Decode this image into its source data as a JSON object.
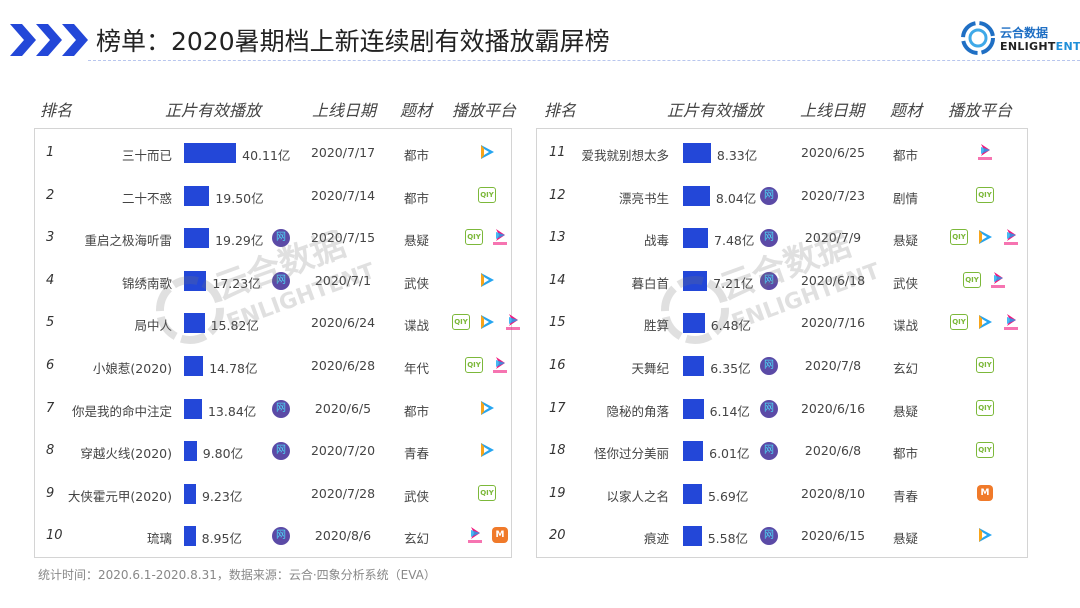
{
  "header": {
    "title": "榜单：2020暑期档上新连续剧有效播放霸屏榜",
    "logo_cn": "云合数据",
    "logo_en_a": "ENLIGHT",
    "logo_en_b": "ENT"
  },
  "colors": {
    "accent": "#2347d8",
    "network_badge": "#5b4aa6",
    "iqiyi": "#7cb83a",
    "mango": "#f07a2a"
  },
  "columns": {
    "rank": "排名",
    "plays": "正片有效播放",
    "date": "上线日期",
    "genre": "题材",
    "platform": "播放平台"
  },
  "network_badge_label": "网",
  "platform_icons": {
    "tencent": "tencent-video-icon",
    "iqiyi": "iqiyi-icon",
    "youku": "youku-icon",
    "mango": "mango-tv-icon"
  },
  "iqiyi_label": "QIY",
  "mango_label": "M",
  "rows": [
    {
      "rank": "1",
      "name": "三十而已",
      "value": 40.11,
      "value_label": "40.11亿",
      "net": false,
      "date": "2020/7/17",
      "genre": "都市",
      "platforms": [
        "tencent"
      ]
    },
    {
      "rank": "2",
      "name": "二十不惑",
      "value": 19.5,
      "value_label": "19.50亿",
      "net": false,
      "date": "2020/7/14",
      "genre": "都市",
      "platforms": [
        "iqiyi"
      ]
    },
    {
      "rank": "3",
      "name": "重启之极海听雷",
      "value": 19.29,
      "value_label": "19.29亿",
      "net": true,
      "date": "2020/7/15",
      "genre": "悬疑",
      "platforms": [
        "iqiyi",
        "youku"
      ]
    },
    {
      "rank": "4",
      "name": "锦绣南歌",
      "value": 17.23,
      "value_label": "17.23亿",
      "net": true,
      "date": "2020/7/1",
      "genre": "武侠",
      "platforms": [
        "tencent"
      ]
    },
    {
      "rank": "5",
      "name": "局中人",
      "value": 15.82,
      "value_label": "15.82亿",
      "net": false,
      "date": "2020/6/24",
      "genre": "谍战",
      "platforms": [
        "iqiyi",
        "tencent",
        "youku"
      ]
    },
    {
      "rank": "6",
      "name": "小娘惹(2020)",
      "value": 14.78,
      "value_label": "14.78亿",
      "net": false,
      "date": "2020/6/28",
      "genre": "年代",
      "platforms": [
        "iqiyi",
        "youku"
      ]
    },
    {
      "rank": "7",
      "name": "你是我的命中注定",
      "value": 13.84,
      "value_label": "13.84亿",
      "net": true,
      "date": "2020/6/5",
      "genre": "都市",
      "platforms": [
        "tencent"
      ]
    },
    {
      "rank": "8",
      "name": "穿越火线(2020)",
      "value": 9.8,
      "value_label": "9.80亿",
      "net": true,
      "date": "2020/7/20",
      "genre": "青春",
      "platforms": [
        "tencent"
      ]
    },
    {
      "rank": "9",
      "name": "大侠霍元甲(2020)",
      "value": 9.23,
      "value_label": "9.23亿",
      "net": false,
      "date": "2020/7/28",
      "genre": "武侠",
      "platforms": [
        "iqiyi"
      ]
    },
    {
      "rank": "10",
      "name": "琉璃",
      "value": 8.95,
      "value_label": "8.95亿",
      "net": true,
      "date": "2020/8/6",
      "genre": "玄幻",
      "platforms": [
        "youku",
        "mango"
      ]
    },
    {
      "rank": "11",
      "name": "爱我就别想太多",
      "value": 8.33,
      "value_label": "8.33亿",
      "net": false,
      "date": "2020/6/25",
      "genre": "都市",
      "platforms": [
        "youku"
      ]
    },
    {
      "rank": "12",
      "name": "漂亮书生",
      "value": 8.04,
      "value_label": "8.04亿",
      "net": true,
      "date": "2020/7/23",
      "genre": "剧情",
      "platforms": [
        "iqiyi"
      ]
    },
    {
      "rank": "13",
      "name": "战毒",
      "value": 7.48,
      "value_label": "7.48亿",
      "net": true,
      "date": "2020/7/9",
      "genre": "悬疑",
      "platforms": [
        "iqiyi",
        "tencent",
        "youku"
      ]
    },
    {
      "rank": "14",
      "name": "暮白首",
      "value": 7.21,
      "value_label": "7.21亿",
      "net": true,
      "date": "2020/6/18",
      "genre": "武侠",
      "platforms": [
        "iqiyi",
        "youku"
      ]
    },
    {
      "rank": "15",
      "name": "胜算",
      "value": 6.48,
      "value_label": "6.48亿",
      "net": false,
      "date": "2020/7/16",
      "genre": "谍战",
      "platforms": [
        "iqiyi",
        "tencent",
        "youku"
      ]
    },
    {
      "rank": "16",
      "name": "天舞纪",
      "value": 6.35,
      "value_label": "6.35亿",
      "net": true,
      "date": "2020/7/8",
      "genre": "玄幻",
      "platforms": [
        "iqiyi"
      ]
    },
    {
      "rank": "17",
      "name": "隐秘的角落",
      "value": 6.14,
      "value_label": "6.14亿",
      "net": true,
      "date": "2020/6/16",
      "genre": "悬疑",
      "platforms": [
        "iqiyi"
      ]
    },
    {
      "rank": "18",
      "name": "怪你过分美丽",
      "value": 6.01,
      "value_label": "6.01亿",
      "net": true,
      "date": "2020/6/8",
      "genre": "都市",
      "platforms": [
        "iqiyi"
      ]
    },
    {
      "rank": "19",
      "name": "以家人之名",
      "value": 5.69,
      "value_label": "5.69亿",
      "net": false,
      "date": "2020/8/10",
      "genre": "青春",
      "platforms": [
        "mango"
      ]
    },
    {
      "rank": "20",
      "name": "痕迹",
      "value": 5.58,
      "value_label": "5.58亿",
      "net": true,
      "date": "2020/6/15",
      "genre": "悬疑",
      "platforms": [
        "tencent"
      ]
    }
  ],
  "footer": "统计时间：2020.6.1-2020.8.31，数据来源：云合·四象分析系统（EVA）",
  "watermark": "云合数据 ENLIGHTENT"
}
